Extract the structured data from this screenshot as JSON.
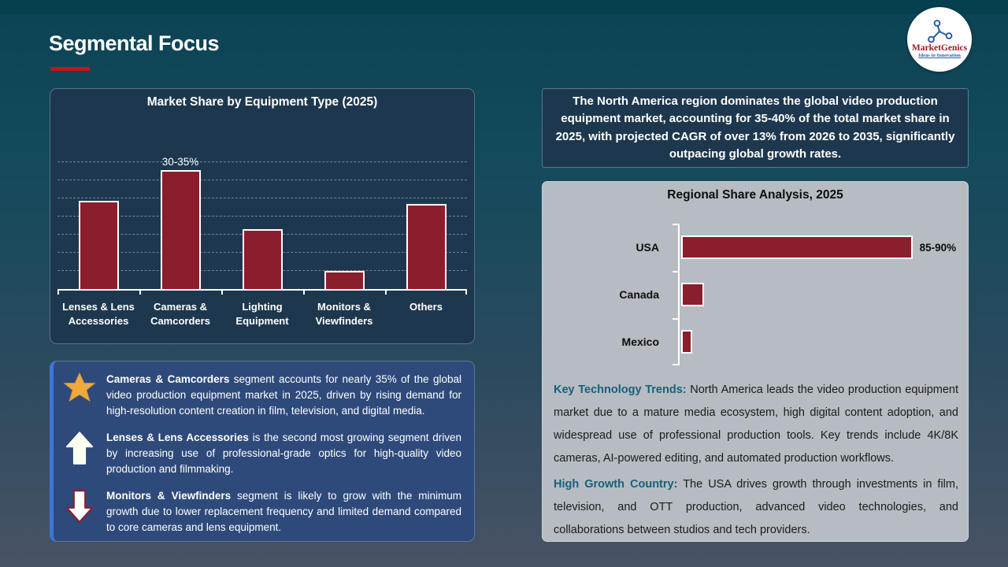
{
  "slide": {
    "title": "Segmental Focus"
  },
  "logo": {
    "name": "MarketGenics",
    "tagline": "Ideas to Innovation"
  },
  "chart_data": [
    {
      "type": "bar",
      "title": "Market Share by Equipment Type (2025)",
      "categories": [
        "Lenses & Lens\nAccessories",
        "Cameras &\nCamcorders",
        "Lighting\nEquipment",
        "Monitors &\nViewfinders",
        "Others"
      ],
      "values": [
        24,
        32.5,
        16,
        4.5,
        23
      ],
      "data_labels": [
        "",
        "30-35%",
        "",
        "",
        ""
      ],
      "unit": "%",
      "ylim": [
        0,
        35
      ],
      "grid": "dashed-horizontal",
      "bar_color": "#8B1E2D",
      "legend": "none"
    },
    {
      "type": "bar-horizontal",
      "title": "Regional Share Analysis, 2025",
      "categories": [
        "USA",
        "Canada",
        "Mexico"
      ],
      "values": [
        87.5,
        7.5,
        3
      ],
      "data_labels": [
        "85-90%",
        "",
        ""
      ],
      "unit": "%",
      "xlim": [
        0,
        100
      ],
      "grid": "off",
      "bar_color": "#8B1E2D",
      "legend": "none"
    }
  ],
  "insights": [
    {
      "icon": "star",
      "lead": "Cameras & Camcorders",
      "text": " segment accounts for nearly 35% of the global video production equipment market in 2025, driven by rising demand for high-resolution content creation in film, television, and digital media."
    },
    {
      "icon": "up-arrow",
      "lead": "Lenses & Lens Accessories",
      "text": " is the second most growing segment driven by increasing use of professional-grade optics for high-quality video production and filmmaking."
    },
    {
      "icon": "down-arrow",
      "lead": "Monitors & Viewfinders",
      "text": " segment is likely to grow with the minimum growth due to lower replacement frequency and limited demand compared to core cameras and lens equipment."
    }
  ],
  "highlight_box": {
    "text": "The North America region dominates the global video production equipment market, accounting for 35-40% of the total market share in 2025, with projected CAGR of over 13% from 2026 to 2035, significantly outpacing global growth rates."
  },
  "regional_panel": {
    "title": "Regional Share Analysis, 2025",
    "paragraphs": [
      {
        "lead": "Key Technology Trends:",
        "text": " North America leads the video production equipment market due to a mature media ecosystem, high digital content adoption, and widespread use of professional production tools. Key trends include 4K/8K cameras, AI-powered editing, and automated production workflows."
      },
      {
        "lead": "High Growth Country:",
        "text": " The USA drives growth through investments in film, television, and OTT production, advanced video technologies, and collaborations between studios and tech providers."
      }
    ]
  },
  "colors": {
    "background_top": "#0C4354",
    "background_bottom": "#485365",
    "panel_navy": "#1D384E",
    "bar_red": "#8B1E2D",
    "insight_blue": "#2E4A7B",
    "insight_accent": "#3D76D9",
    "gray_panel": "#B6BCC2",
    "title_underline": "#C51320",
    "teal_lead": "#18607A",
    "star_gold": "#F0A93C"
  }
}
